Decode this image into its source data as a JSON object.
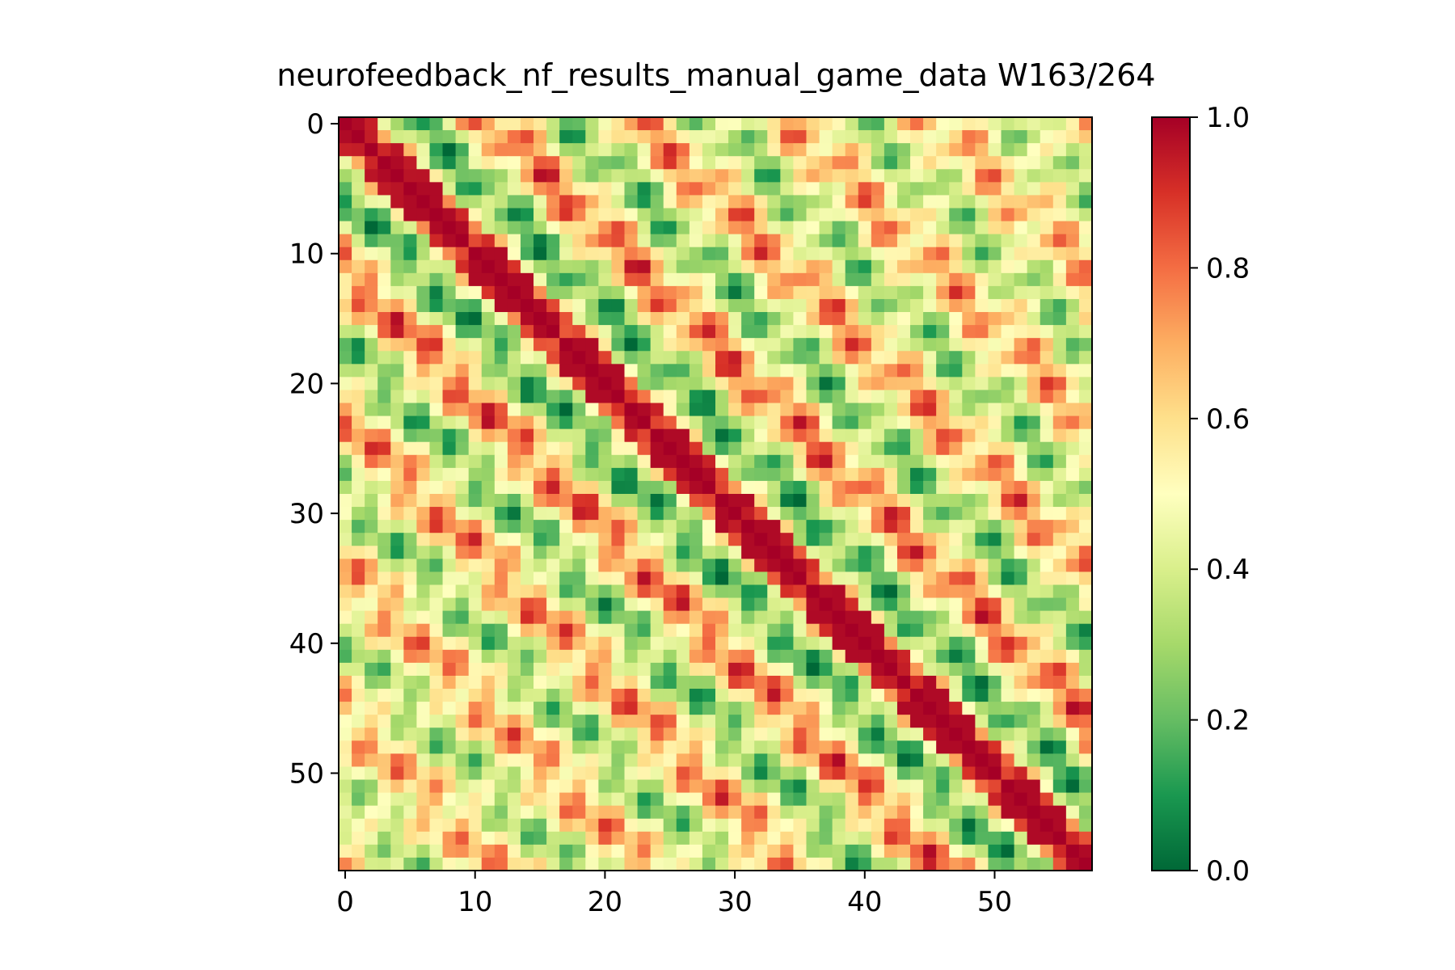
{
  "chart_data": {
    "type": "heatmap",
    "title": "neurofeedback_nf_results_manual_game_data W163/264",
    "xlabel": "",
    "ylabel": "",
    "n": 58,
    "xlim": [
      -0.5,
      57.5
    ],
    "ylim": [
      57.5,
      -0.5
    ],
    "x_ticks": [
      0,
      10,
      20,
      30,
      40,
      50
    ],
    "y_ticks": [
      0,
      10,
      20,
      30,
      40,
      50
    ],
    "x_tick_labels": [
      "0",
      "10",
      "20",
      "30",
      "40",
      "50"
    ],
    "y_tick_labels": [
      "0",
      "10",
      "20",
      "30",
      "40",
      "50"
    ],
    "colormap": "RdYlGn_r",
    "colormap_stops": [
      "#006837",
      "#1a9850",
      "#66bd63",
      "#a6d96a",
      "#d9ef8b",
      "#ffffbf",
      "#fee08b",
      "#fdae61",
      "#f46d43",
      "#d73027",
      "#a50026"
    ],
    "colorbar": {
      "vmin": 0.0,
      "vmax": 1.0,
      "ticks": [
        0.0,
        0.2,
        0.4,
        0.6,
        0.8,
        1.0
      ],
      "tick_labels": [
        "0.0",
        "0.2",
        "0.4",
        "0.6",
        "0.8",
        "1.0"
      ]
    },
    "diagonal_value": 1.0,
    "values_note": "",
    "grid": false,
    "legend": "none"
  }
}
